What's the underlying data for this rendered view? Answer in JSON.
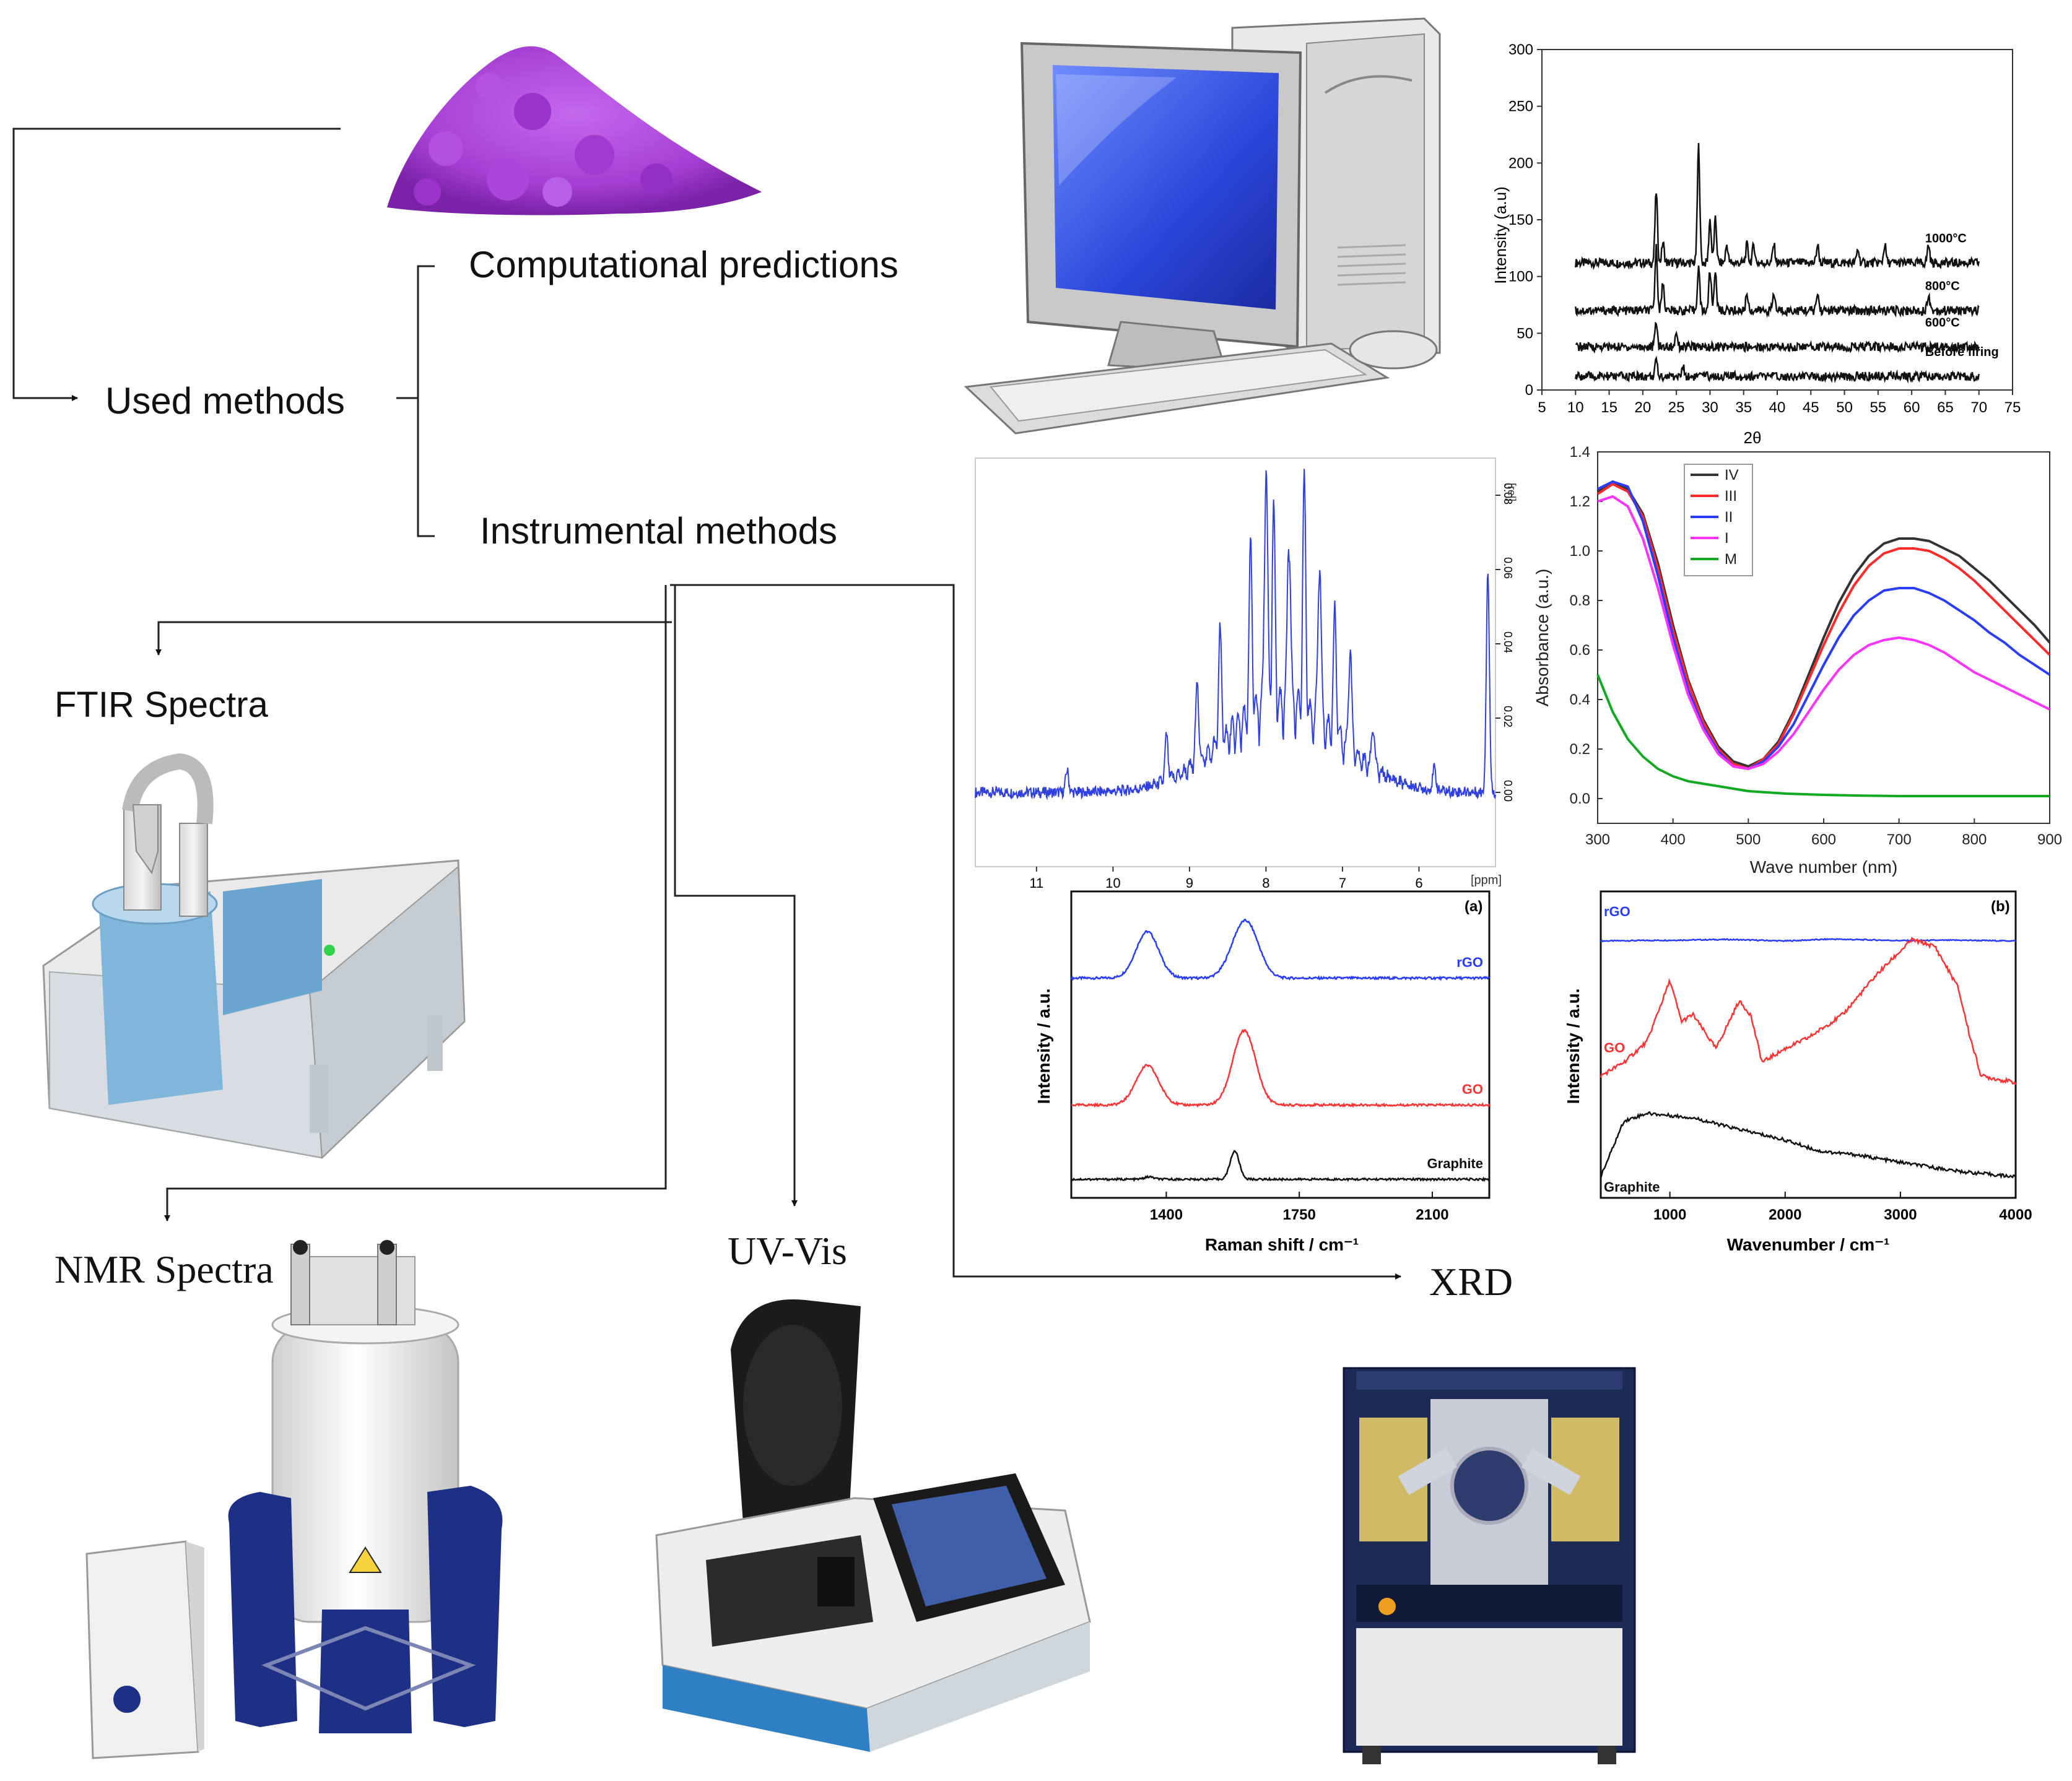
{
  "labels": {
    "computational": "Computational predictions",
    "used_methods": "Used methods",
    "instrumental": "Instrumental methods",
    "ftir": "FTIR Spectra",
    "nmr": "NMR Spectra",
    "uvvis": "UV-Vis",
    "xrd": "XRD"
  },
  "colors": {
    "powder": "#a63fd4",
    "monitor_screen": "#2f4fe0",
    "ftir_blue": "#7fb6da",
    "nmr_blue": "#1e2f86",
    "uv_blue": "#2e7fc4",
    "xrd_navy": "#1c2a55",
    "uv_series": [
      "#333333",
      "#ff2a2a",
      "#2a3dff",
      "#ff33ff",
      "#11aa22"
    ],
    "raman_series": [
      "#2a3dff",
      "#ff3333",
      "#111111"
    ]
  },
  "icons": [
    "powder-pile",
    "desktop-computer",
    "ftir-spectrometer",
    "nmr-spectrometer",
    "uv-vis-spectrophotometer",
    "x-ray-diffractometer"
  ],
  "chart_data": [
    {
      "type": "line",
      "xlabel": "2θ",
      "ylabel": "Intensity (a.u)",
      "xlim": [
        5,
        75
      ],
      "ylim": [
        0,
        300
      ],
      "x_ticks": [
        "5",
        "10",
        "15",
        "20",
        "25",
        "30",
        "35",
        "40",
        "45",
        "50",
        "55",
        "60",
        "65",
        "70",
        "75"
      ],
      "y_ticks": [
        "0",
        "50",
        "100",
        "150",
        "200",
        "250",
        "300"
      ],
      "series": [
        {
          "name": "1000°C",
          "baseline": 112,
          "peaks": [
            [
              22,
              175
            ],
            [
              23,
              130
            ],
            [
              28.3,
              215
            ],
            [
              30,
              150
            ],
            [
              30.8,
              150
            ],
            [
              32.5,
              128
            ],
            [
              35.5,
              128
            ],
            [
              36.5,
              128
            ],
            [
              39.5,
              128
            ],
            [
              46,
              128
            ],
            [
              52,
              124
            ],
            [
              56,
              128
            ],
            [
              62.5,
              128
            ]
          ]
        },
        {
          "name": "800°C",
          "baseline": 70,
          "peaks": [
            [
              22,
              125
            ],
            [
              23,
              95
            ],
            [
              28.3,
              108
            ],
            [
              30,
              105
            ],
            [
              30.8,
              105
            ],
            [
              35.5,
              85
            ],
            [
              39.5,
              85
            ],
            [
              46,
              85
            ],
            [
              62.5,
              85
            ]
          ]
        },
        {
          "name": "600°C",
          "baseline": 38,
          "peaks": [
            [
              22,
              60
            ],
            [
              25,
              52
            ]
          ]
        },
        {
          "name": "Before firing",
          "baseline": 12,
          "peaks": [
            [
              22,
              25
            ],
            [
              26,
              20
            ]
          ]
        }
      ]
    },
    {
      "type": "line",
      "xlabel": "",
      "ylabel": "",
      "x_unit": "[ppm]",
      "y_unit": "[rel]",
      "x_ticks": [
        "11",
        "10",
        "9",
        "8",
        "7",
        "6"
      ],
      "y_ticks": [
        "0.00",
        "0.02",
        "0.04",
        "0.06",
        "0.08"
      ],
      "xlim": [
        11.8,
        5.0
      ],
      "ylim": [
        -0.02,
        0.09
      ],
      "peaks_ppm": [
        [
          10.6,
          0.006
        ],
        [
          9.3,
          0.012
        ],
        [
          8.9,
          0.022
        ],
        [
          8.6,
          0.03
        ],
        [
          8.2,
          0.045
        ],
        [
          8.0,
          0.068
        ],
        [
          7.9,
          0.052
        ],
        [
          7.7,
          0.05
        ],
        [
          7.5,
          0.062
        ],
        [
          7.3,
          0.045
        ],
        [
          7.1,
          0.034
        ],
        [
          6.9,
          0.028
        ],
        [
          6.6,
          0.012
        ],
        [
          5.8,
          0.006
        ],
        [
          5.1,
          0.06
        ]
      ]
    },
    {
      "type": "line",
      "xlabel": "Wave number (nm)",
      "ylabel": "Absorbance (a.u.)",
      "xlim": [
        300,
        900
      ],
      "ylim": [
        -0.1,
        1.4
      ],
      "x_ticks": [
        "300",
        "400",
        "500",
        "600",
        "700",
        "800",
        "900"
      ],
      "y_ticks": [
        "0.0",
        "0.2",
        "0.4",
        "0.6",
        "0.8",
        "1.0",
        "1.2",
        "1.4"
      ],
      "legend_position": "top-left",
      "series": [
        {
          "name": "IV",
          "x": [
            300,
            320,
            340,
            360,
            380,
            400,
            420,
            440,
            460,
            480,
            500,
            520,
            540,
            560,
            580,
            600,
            620,
            640,
            660,
            680,
            700,
            720,
            740,
            760,
            780,
            800,
            820,
            840,
            860,
            880,
            900
          ],
          "values": [
            1.24,
            1.28,
            1.25,
            1.15,
            0.95,
            0.7,
            0.48,
            0.32,
            0.21,
            0.15,
            0.13,
            0.16,
            0.23,
            0.35,
            0.5,
            0.65,
            0.79,
            0.9,
            0.98,
            1.03,
            1.05,
            1.05,
            1.04,
            1.01,
            0.98,
            0.93,
            0.88,
            0.82,
            0.76,
            0.7,
            0.63
          ]
        },
        {
          "name": "III",
          "x": [
            300,
            320,
            340,
            360,
            380,
            400,
            420,
            440,
            460,
            480,
            500,
            520,
            540,
            560,
            580,
            600,
            620,
            640,
            660,
            680,
            700,
            720,
            740,
            760,
            780,
            800,
            820,
            840,
            860,
            880,
            900
          ],
          "values": [
            1.23,
            1.27,
            1.24,
            1.14,
            0.93,
            0.68,
            0.47,
            0.31,
            0.2,
            0.14,
            0.12,
            0.16,
            0.22,
            0.34,
            0.48,
            0.62,
            0.75,
            0.86,
            0.94,
            0.99,
            1.01,
            1.01,
            1.0,
            0.97,
            0.93,
            0.88,
            0.82,
            0.76,
            0.7,
            0.64,
            0.58
          ]
        },
        {
          "name": "II",
          "x": [
            300,
            320,
            340,
            360,
            380,
            400,
            420,
            440,
            460,
            480,
            500,
            520,
            540,
            560,
            580,
            600,
            620,
            640,
            660,
            680,
            700,
            720,
            740,
            760,
            780,
            800,
            820,
            840,
            860,
            880,
            900
          ],
          "values": [
            1.25,
            1.28,
            1.26,
            1.12,
            0.9,
            0.65,
            0.44,
            0.29,
            0.19,
            0.13,
            0.12,
            0.15,
            0.21,
            0.3,
            0.42,
            0.54,
            0.65,
            0.74,
            0.8,
            0.84,
            0.85,
            0.85,
            0.83,
            0.8,
            0.76,
            0.72,
            0.67,
            0.63,
            0.58,
            0.54,
            0.5
          ]
        },
        {
          "name": "I",
          "x": [
            300,
            320,
            340,
            360,
            380,
            400,
            420,
            440,
            460,
            480,
            500,
            520,
            540,
            560,
            580,
            600,
            620,
            640,
            660,
            680,
            700,
            720,
            740,
            760,
            780,
            800,
            820,
            840,
            860,
            880,
            900
          ],
          "values": [
            1.2,
            1.22,
            1.18,
            1.05,
            0.85,
            0.62,
            0.42,
            0.28,
            0.18,
            0.13,
            0.12,
            0.14,
            0.19,
            0.26,
            0.35,
            0.44,
            0.52,
            0.58,
            0.62,
            0.64,
            0.65,
            0.64,
            0.62,
            0.59,
            0.55,
            0.51,
            0.48,
            0.45,
            0.42,
            0.39,
            0.36
          ]
        },
        {
          "name": "M",
          "x": [
            300,
            320,
            340,
            360,
            380,
            400,
            420,
            440,
            460,
            480,
            500,
            550,
            600,
            650,
            700,
            750,
            800,
            850,
            900
          ],
          "values": [
            0.5,
            0.35,
            0.24,
            0.17,
            0.12,
            0.09,
            0.07,
            0.06,
            0.05,
            0.04,
            0.03,
            0.02,
            0.015,
            0.012,
            0.01,
            0.01,
            0.01,
            0.01,
            0.01
          ]
        }
      ]
    },
    {
      "type": "line",
      "panel": "(a)",
      "xlabel": "Raman shift / cm⁻¹",
      "ylabel": "Intensity / a.u.",
      "xlim": [
        1150,
        2250
      ],
      "x_ticks": [
        "1400",
        "1750",
        "2100"
      ],
      "series": [
        {
          "name": "rGO",
          "peaks": [
            [
              1350,
              1.0
            ],
            [
              1590,
              0.6
            ],
            [
              1620,
              0.8
            ]
          ]
        },
        {
          "name": "GO",
          "peaks": [
            [
              1350,
              0.85
            ],
            [
              1605,
              1.6
            ]
          ]
        },
        {
          "name": "Graphite",
          "peaks": [
            [
              1580,
              0.7
            ],
            [
              1355,
              0.06
            ]
          ]
        }
      ]
    },
    {
      "type": "line",
      "panel": "(b)",
      "xlabel": "Wavenumber / cm⁻¹",
      "ylabel": "Intensity / a.u.",
      "xlim": [
        400,
        4000
      ],
      "x_ticks": [
        "1000",
        "2000",
        "3000",
        "4000"
      ],
      "series": [
        {
          "name": "rGO",
          "x": [
            400,
            1000,
            1500,
            2000,
            2400,
            3000,
            3500,
            4000
          ],
          "values": [
            0.0,
            0.02,
            0.04,
            0.0,
            0.05,
            0.01,
            0.02,
            0.0
          ]
        },
        {
          "name": "GO",
          "x": [
            400,
            600,
            800,
            1000,
            1100,
            1200,
            1400,
            1600,
            1700,
            1800,
            2000,
            2200,
            2500,
            2800,
            3100,
            3300,
            3500,
            3600,
            3700,
            4000
          ],
          "values": [
            0.1,
            0.2,
            0.35,
            0.8,
            0.5,
            0.55,
            0.3,
            0.65,
            0.55,
            0.2,
            0.3,
            0.38,
            0.55,
            0.85,
            1.1,
            1.05,
            0.75,
            0.4,
            0.1,
            0.05
          ]
        },
        {
          "name": "Graphite",
          "x": [
            400,
            600,
            800,
            1000,
            1200,
            1500,
            2000,
            2300,
            2600,
            3000,
            3500,
            4000
          ],
          "values": [
            0.05,
            0.55,
            0.62,
            0.6,
            0.58,
            0.5,
            0.38,
            0.28,
            0.25,
            0.18,
            0.1,
            0.05
          ]
        }
      ]
    }
  ]
}
